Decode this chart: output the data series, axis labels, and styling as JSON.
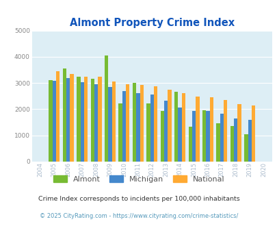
{
  "title": "Almont Property Crime Index",
  "years": [
    2004,
    2005,
    2006,
    2007,
    2008,
    2009,
    2010,
    2011,
    2012,
    2013,
    2014,
    2015,
    2016,
    2017,
    2018,
    2019,
    2020
  ],
  "almont": [
    null,
    3100,
    3550,
    3230,
    3170,
    4050,
    2220,
    3000,
    2220,
    1930,
    2660,
    1330,
    1960,
    1450,
    1370,
    1050,
    null
  ],
  "michigan": [
    null,
    3080,
    3175,
    3040,
    2950,
    2840,
    2700,
    2600,
    2550,
    2330,
    2070,
    1920,
    1920,
    1820,
    1650,
    1580,
    null
  ],
  "national": [
    null,
    3450,
    3340,
    3250,
    3230,
    3050,
    2960,
    2920,
    2880,
    2750,
    2610,
    2490,
    2460,
    2360,
    2200,
    2130,
    null
  ],
  "almont_color": "#77bb33",
  "michigan_color": "#4488cc",
  "national_color": "#ffaa33",
  "bg_color": "#ddeef5",
  "ylim": [
    0,
    5000
  ],
  "yticks": [
    0,
    1000,
    2000,
    3000,
    4000,
    5000
  ],
  "xtick_color": "#aabbcc",
  "ytick_color": "#888888",
  "title_color": "#1155bb",
  "legend_labels": [
    "Almont",
    "Michigan",
    "National"
  ],
  "footnote1": "Crime Index corresponds to incidents per 100,000 inhabitants",
  "footnote2": "© 2025 CityRating.com - https://www.cityrating.com/crime-statistics/",
  "footnote1_color": "#333333",
  "footnote2_color": "#5599bb",
  "grid_color": "#ffffff"
}
